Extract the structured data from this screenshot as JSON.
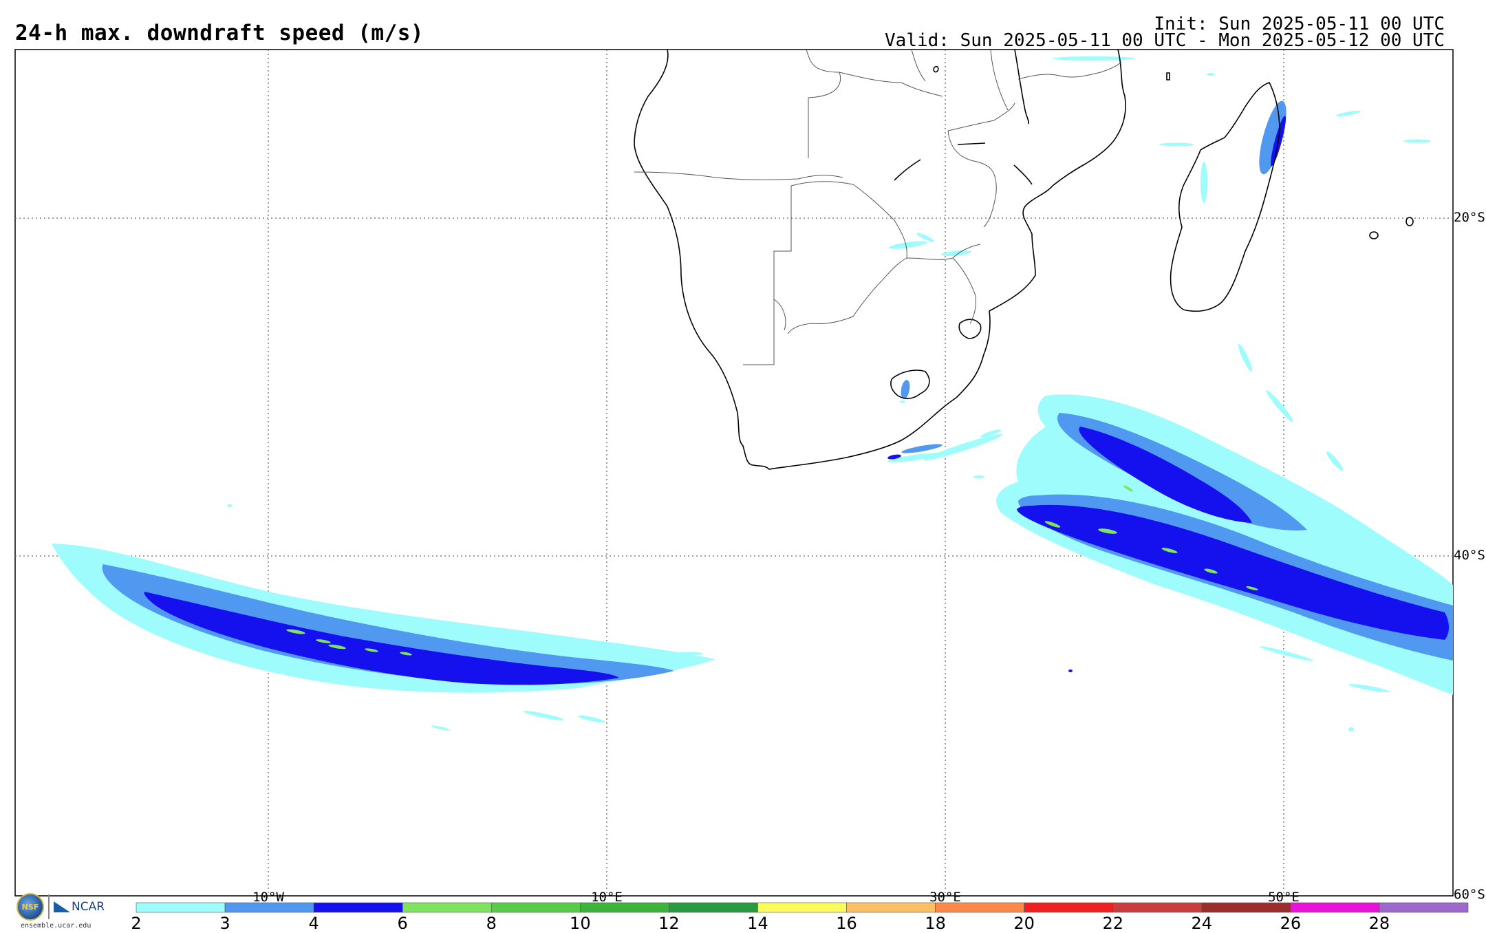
{
  "header": {
    "title": "24-h max. downdraft speed (m/s)",
    "init": "Init: Sun 2025-05-11 00 UTC",
    "valid": "Valid: Sun 2025-05-11 00 UTC - Mon 2025-05-12 00 UTC"
  },
  "map": {
    "longitude_labels": [
      "10°W",
      "10°E",
      "30°E",
      "50°E"
    ],
    "latitude_labels": [
      "20°S",
      "40°S",
      "60°S"
    ]
  },
  "colorbar": {
    "labels": [
      "2",
      "3",
      "4",
      "6",
      "8",
      "10",
      "12",
      "14",
      "16",
      "18",
      "20",
      "22",
      "24",
      "26",
      "28"
    ],
    "colors": [
      "#9efcfc",
      "#5098f0",
      "#1410ee",
      "#7ee35e",
      "#58cc49",
      "#3cb43c",
      "#289a3f",
      "#fbfb5b",
      "#fbc062",
      "#fb8a4a",
      "#f02020",
      "#c83e3e",
      "#9c2d2d",
      "#e812d8",
      "#9c68cc"
    ]
  },
  "footer": {
    "nsf_text": "NSF",
    "ncar_text": "NCAR",
    "site": "ensemble.ucar.edu"
  }
}
